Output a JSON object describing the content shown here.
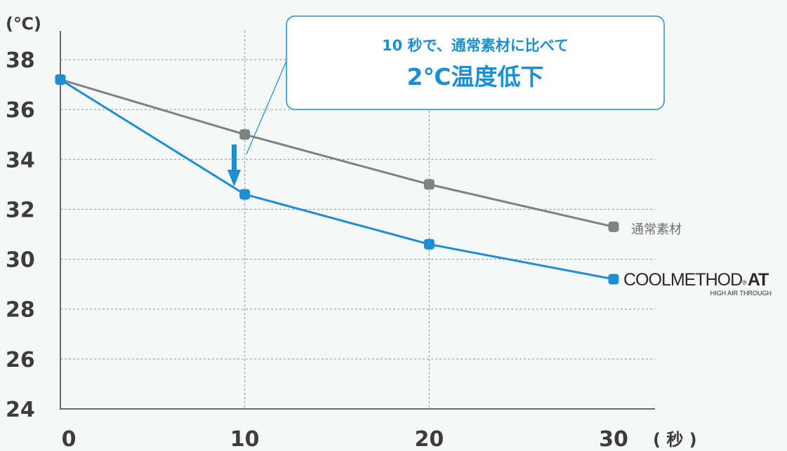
{
  "chart_data": {
    "type": "line",
    "x": [
      0,
      10,
      20,
      30
    ],
    "xticks": [
      "0",
      "10",
      "20",
      "30"
    ],
    "yticks": [
      "24",
      "26",
      "28",
      "30",
      "32",
      "34",
      "36",
      "38"
    ],
    "xlabel": "( 秒 )",
    "ylabel": "(℃)",
    "xlim": [
      0,
      30
    ],
    "ylim": [
      24,
      38
    ],
    "grid": true,
    "series": [
      {
        "name": "通常素材",
        "values": [
          37.2,
          35.0,
          33.0,
          31.3
        ],
        "color": "#7d8285"
      },
      {
        "name": "COOLMETHOD. AT",
        "sub": "HIGH AIR THROUGH",
        "values": [
          37.2,
          32.6,
          30.6,
          29.2
        ],
        "color": "#1b8fd2"
      }
    ],
    "callout": {
      "line1": "10 秒で、通常素材に比べて",
      "line2": "2℃温度低下"
    }
  },
  "logo": {
    "main": "COOLMETHOD",
    "suffix": "AT",
    "mark": "®",
    "sub": "HIGH AIR THROUGH"
  }
}
